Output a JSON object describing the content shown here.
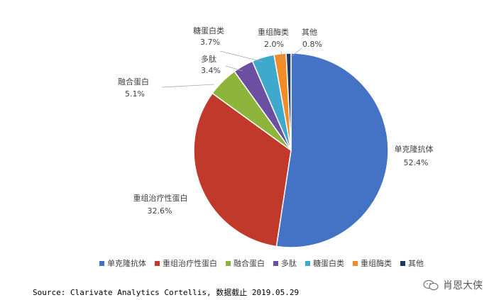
{
  "chart_data": {
    "type": "pie",
    "categories": [
      "单克隆抗体",
      "重组治疗性蛋白",
      "融合蛋白",
      "多肽",
      "糖蛋白类",
      "重组酶类",
      "其他"
    ],
    "values": [
      52.4,
      32.6,
      5.1,
      3.4,
      3.7,
      2.0,
      0.8
    ],
    "value_labels": [
      "52.4%",
      "32.6%",
      "5.1%",
      "3.4%",
      "3.7%",
      "2.0%",
      "0.8%"
    ],
    "colors": [
      "#4472C4",
      "#C0392B",
      "#8DB53C",
      "#6B4FA0",
      "#3EA9CC",
      "#F28C28",
      "#1F3864"
    ],
    "legend_position": "bottom"
  },
  "source": "Source: Clarivate Analytics Cortellis, 数据截止 2019.05.29",
  "watermark": "肖恩大侠",
  "watermark_icon": "wechat-icon"
}
